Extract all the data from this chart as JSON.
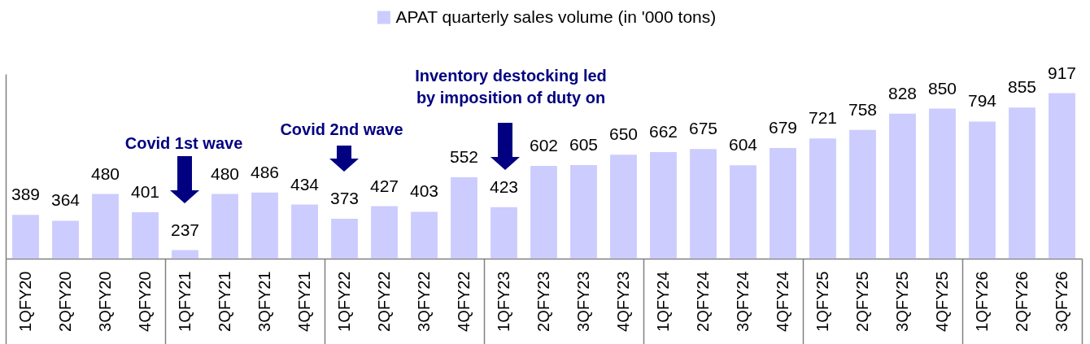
{
  "chart_data": {
    "type": "bar",
    "categories": [
      "1QFY20",
      "2QFY20",
      "3QFY20",
      "4QFY20",
      "1QFY21",
      "2QFY21",
      "3QFY21",
      "4QFY21",
      "1QFY22",
      "2QFY22",
      "3QFY22",
      "4QFY22",
      "1QFY23",
      "2QFY23",
      "3QFY23",
      "4QFY23",
      "1QFY24",
      "2QFY24",
      "3QFY24",
      "4QFY24",
      "1QFY25",
      "2QFY25",
      "3QFY25",
      "4QFY25",
      "1QFY26",
      "2QFY26",
      "3QFY26"
    ],
    "series": [
      {
        "name": "APAT quarterly sales volume (in '000 tons)",
        "color": "#ccccff",
        "values": [
          389,
          364,
          480,
          401,
          237,
          480,
          486,
          434,
          373,
          427,
          403,
          552,
          423,
          602,
          605,
          650,
          662,
          675,
          604,
          679,
          721,
          758,
          828,
          850,
          794,
          855,
          917
        ]
      }
    ],
    "ylim": [
      200,
      1000
    ],
    "data_labels": true,
    "legend": "top",
    "tick_labels": "x",
    "annotations": [
      "Covid 1st wave",
      "Covid 2nd wave",
      "Inventory destocking led\nby imposition of duty on"
    ]
  }
}
